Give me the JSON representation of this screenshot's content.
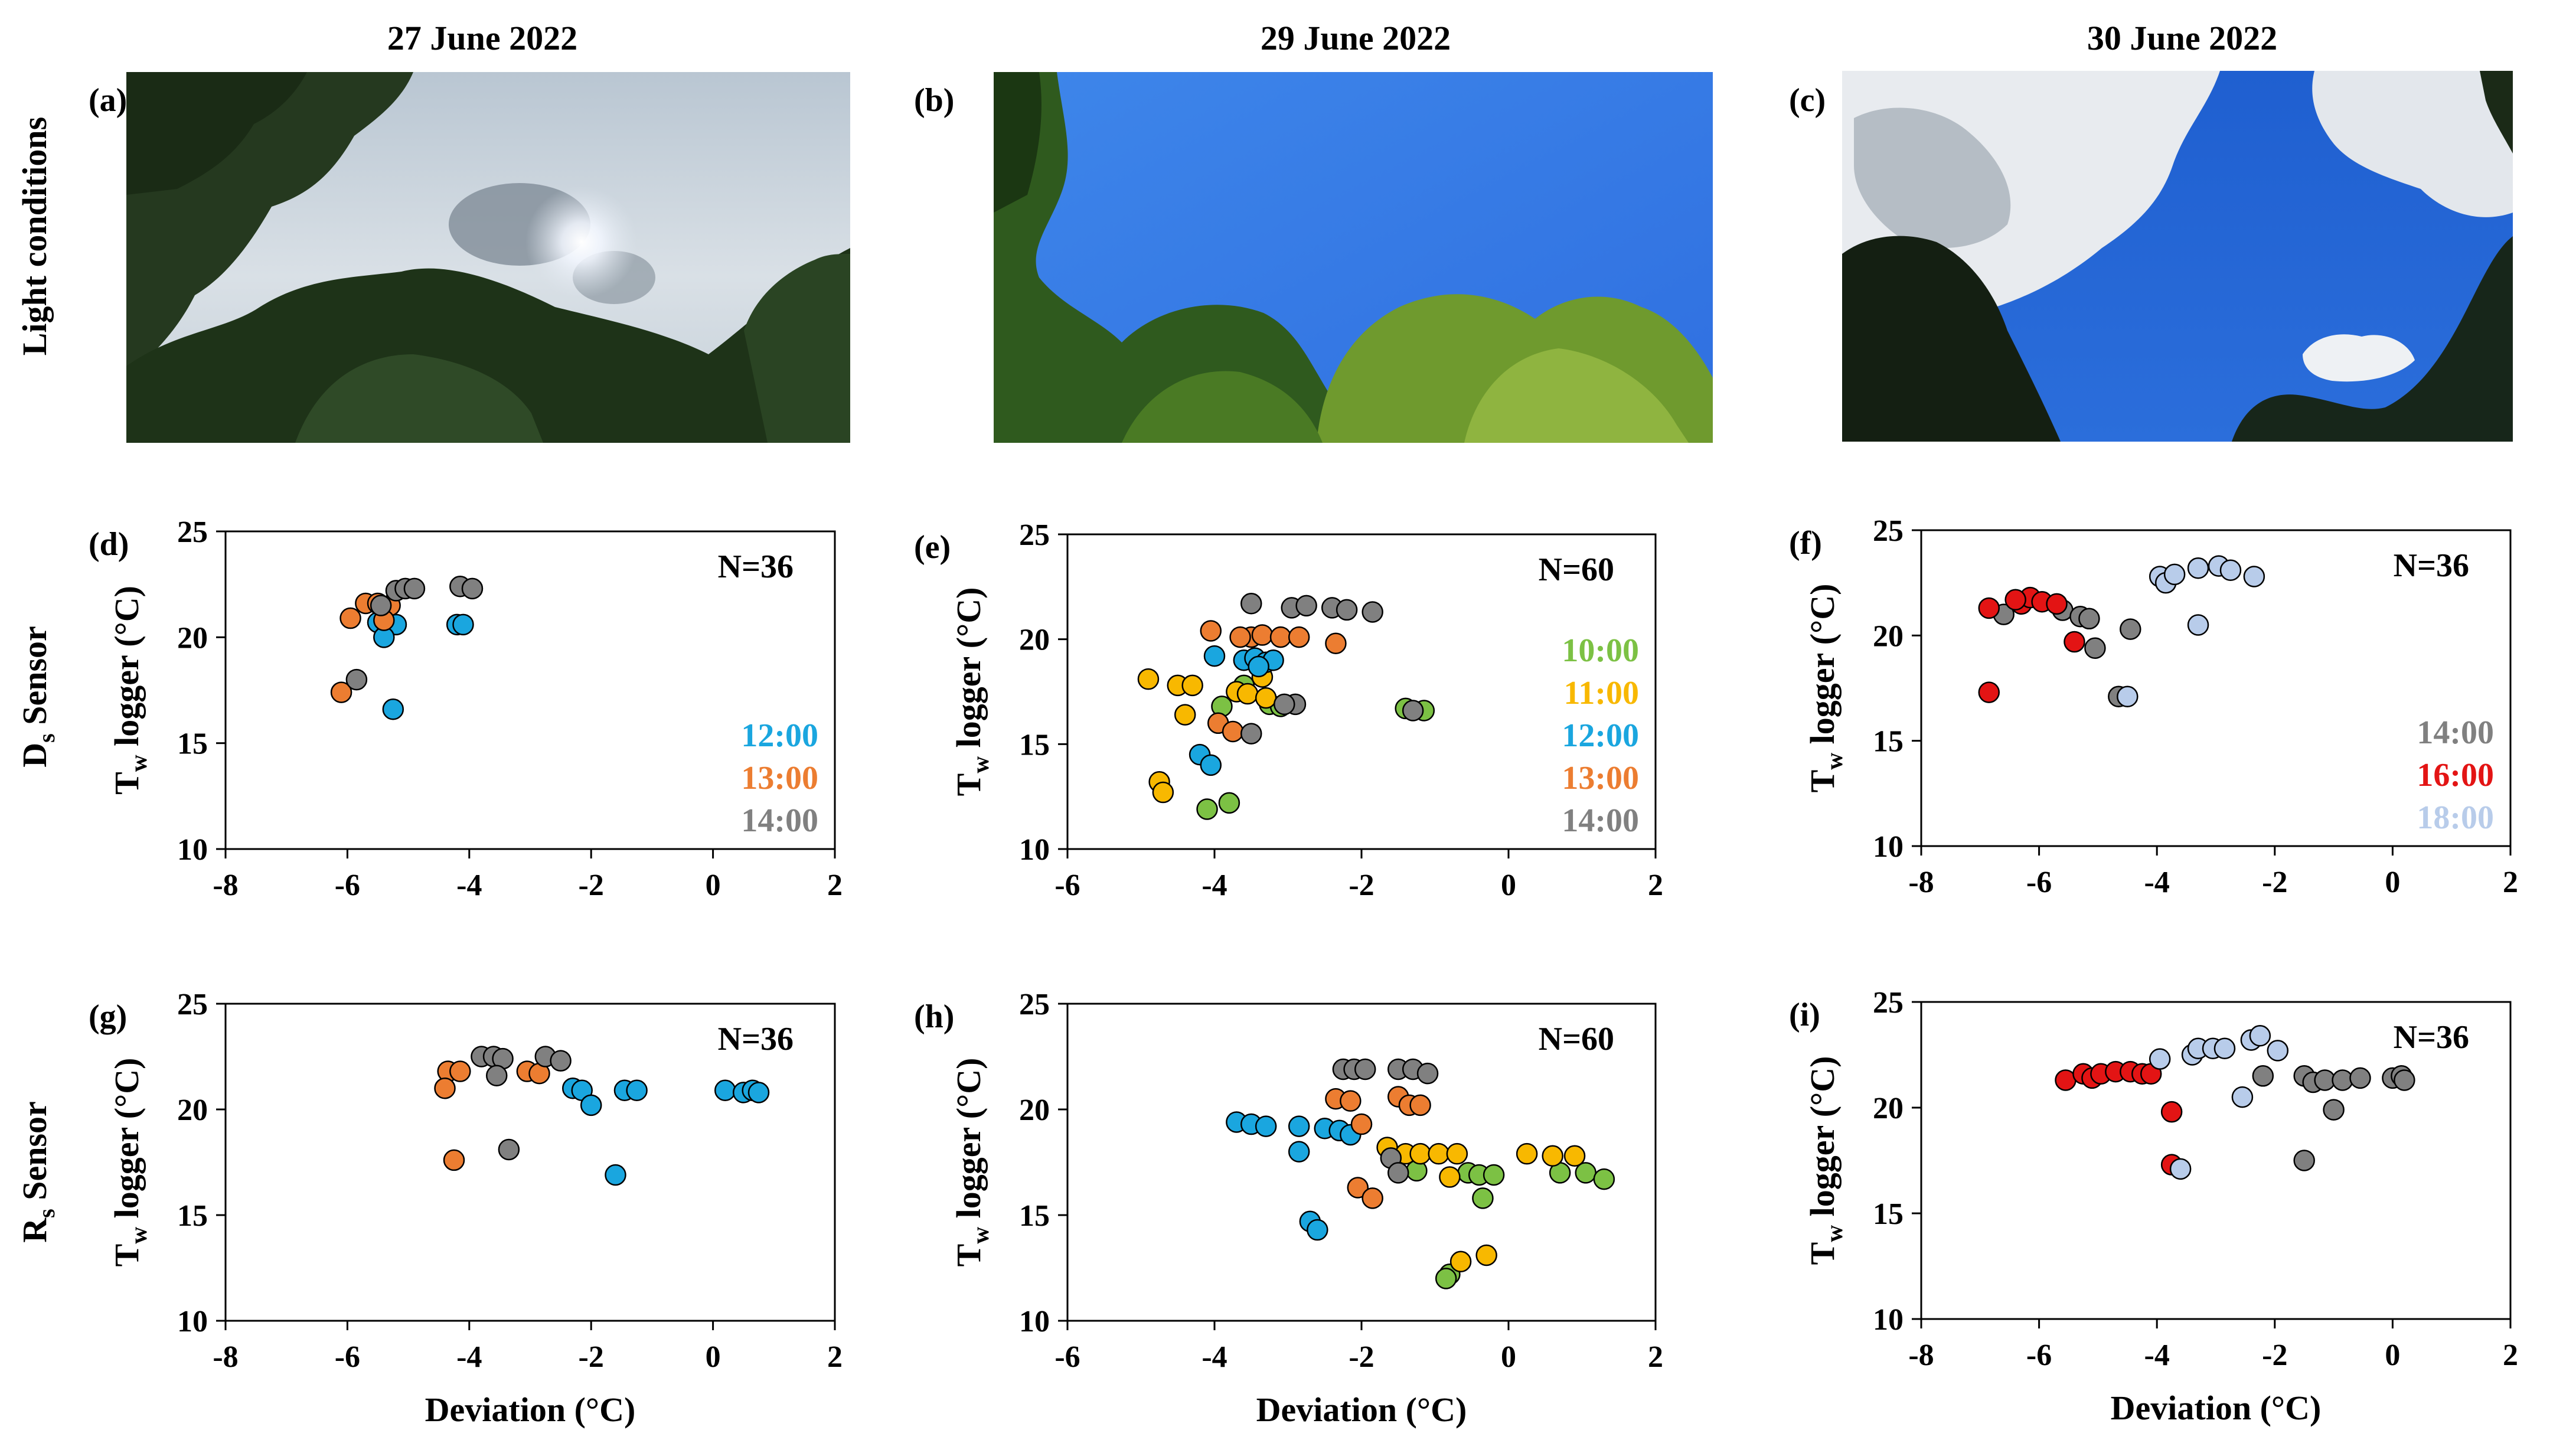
{
  "columns": [
    {
      "date": "27 June 2022"
    },
    {
      "date": "29 June 2022"
    },
    {
      "date": "30 June 2022"
    }
  ],
  "row_labels": {
    "light": "Light conditions",
    "ds": {
      "main": "D",
      "sub": "s",
      "tail": " Sensor"
    },
    "rs": {
      "main": "R",
      "sub": "s",
      "tail": " Sensor"
    }
  },
  "ylabel": {
    "main": "T",
    "sub": "w",
    "tail": " logger (°C)"
  },
  "xlabel": "Deviation (°C)",
  "photos": [
    {
      "label": "(a)",
      "sky": "overcast"
    },
    {
      "label": "(b)",
      "sky": "clear"
    },
    {
      "label": "(c)",
      "sky": "cumulus"
    }
  ],
  "colors": {
    "10:00": "#7CC144",
    "11:00": "#F8B800",
    "12:00": "#1AA6DF",
    "13:00": "#EC7D31",
    "14:00": "#808080",
    "16:00": "#E31414",
    "18:00": "#B8CCEA"
  },
  "chart_data": [
    {
      "type": "scatter",
      "label": "(d)",
      "annotation": "N=36",
      "xlim": [
        -8,
        2
      ],
      "ylim": [
        10,
        25
      ],
      "xticks": [
        -8,
        -6,
        -4,
        -2,
        0,
        2
      ],
      "yticks": [
        10,
        15,
        20,
        25
      ],
      "legend": [
        "12:00",
        "13:00",
        "14:00"
      ],
      "series": [
        {
          "name": "12:00",
          "points": [
            [
              -5.5,
              20.7
            ],
            [
              -5.35,
              20.6
            ],
            [
              -5.2,
              20.6
            ],
            [
              -5.4,
              20.0
            ],
            [
              -5.25,
              16.6
            ],
            [
              -4.2,
              20.6
            ],
            [
              -4.1,
              20.6
            ]
          ]
        },
        {
          "name": "13:00",
          "points": [
            [
              -6.1,
              17.4
            ],
            [
              -5.95,
              20.9
            ],
            [
              -5.7,
              21.6
            ],
            [
              -5.5,
              21.6
            ],
            [
              -5.3,
              21.5
            ],
            [
              -5.4,
              20.8
            ]
          ]
        },
        {
          "name": "14:00",
          "points": [
            [
              -5.85,
              18.0
            ],
            [
              -5.2,
              22.2
            ],
            [
              -5.05,
              22.3
            ],
            [
              -4.9,
              22.3
            ],
            [
              -4.15,
              22.4
            ],
            [
              -3.95,
              22.3
            ],
            [
              -5.45,
              21.5
            ]
          ]
        }
      ]
    },
    {
      "type": "scatter",
      "label": "(e)",
      "annotation": "N=60",
      "xlim": [
        -6,
        2
      ],
      "ylim": [
        10,
        25
      ],
      "xticks": [
        -6,
        -4,
        -2,
        0,
        2
      ],
      "yticks": [
        10,
        15,
        20,
        25
      ],
      "legend": [
        "10:00",
        "11:00",
        "12:00",
        "13:00",
        "14:00"
      ],
      "series": [
        {
          "name": "10:00",
          "points": [
            [
              -4.1,
              11.9
            ],
            [
              -3.8,
              12.2
            ],
            [
              -3.9,
              16.8
            ],
            [
              -3.6,
              17.8
            ],
            [
              -3.25,
              16.9
            ],
            [
              -3.1,
              16.8
            ],
            [
              -1.4,
              16.7
            ],
            [
              -1.15,
              16.6
            ]
          ]
        },
        {
          "name": "11:00",
          "points": [
            [
              -4.9,
              18.1
            ],
            [
              -4.75,
              13.2
            ],
            [
              -4.7,
              12.7
            ],
            [
              -4.5,
              17.8
            ],
            [
              -4.3,
              17.8
            ],
            [
              -4.4,
              16.4
            ],
            [
              -3.7,
              17.5
            ],
            [
              -3.55,
              17.4
            ],
            [
              -3.3,
              17.2
            ],
            [
              -3.35,
              18.2
            ]
          ]
        },
        {
          "name": "12:00",
          "points": [
            [
              -4.2,
              14.5
            ],
            [
              -4.05,
              14.0
            ],
            [
              -4.0,
              19.2
            ],
            [
              -3.6,
              19.0
            ],
            [
              -3.45,
              19.1
            ],
            [
              -3.3,
              18.9
            ],
            [
              -3.2,
              19.0
            ],
            [
              -3.4,
              18.7
            ]
          ]
        },
        {
          "name": "13:00",
          "points": [
            [
              -4.05,
              20.4
            ],
            [
              -3.95,
              16.0
            ],
            [
              -3.75,
              15.6
            ],
            [
              -3.5,
              20.1
            ],
            [
              -3.35,
              20.2
            ],
            [
              -3.1,
              20.1
            ],
            [
              -2.85,
              20.1
            ],
            [
              -2.35,
              19.8
            ],
            [
              -3.65,
              20.1
            ]
          ]
        },
        {
          "name": "14:00",
          "points": [
            [
              -3.5,
              21.7
            ],
            [
              -3.5,
              15.5
            ],
            [
              -2.95,
              21.5
            ],
            [
              -2.75,
              21.6
            ],
            [
              -2.4,
              21.5
            ],
            [
              -2.2,
              21.4
            ],
            [
              -1.85,
              21.3
            ],
            [
              -2.9,
              16.9
            ],
            [
              -3.05,
              16.9
            ],
            [
              -1.3,
              16.6
            ]
          ]
        }
      ]
    },
    {
      "type": "scatter",
      "label": "(f)",
      "annotation": "N=36",
      "xlim": [
        -8,
        2
      ],
      "ylim": [
        10,
        25
      ],
      "xticks": [
        -8,
        -6,
        -4,
        -2,
        0,
        2
      ],
      "yticks": [
        10,
        15,
        20,
        25
      ],
      "legend": [
        "14:00",
        "16:00",
        "18:00"
      ],
      "series": [
        {
          "name": "14:00",
          "points": [
            [
              -6.6,
              21.0
            ],
            [
              -5.6,
              21.2
            ],
            [
              -5.3,
              20.9
            ],
            [
              -5.15,
              20.8
            ],
            [
              -5.05,
              19.4
            ],
            [
              -4.45,
              20.3
            ],
            [
              -4.65,
              17.1
            ]
          ]
        },
        {
          "name": "16:00",
          "points": [
            [
              -6.85,
              21.3
            ],
            [
              -6.85,
              17.3
            ],
            [
              -6.3,
              21.5
            ],
            [
              -6.15,
              21.8
            ],
            [
              -5.95,
              21.6
            ],
            [
              -5.7,
              21.5
            ],
            [
              -5.4,
              19.7
            ],
            [
              -6.4,
              21.7
            ]
          ]
        },
        {
          "name": "18:00",
          "points": [
            [
              -4.5,
              17.1
            ],
            [
              -3.95,
              22.8
            ],
            [
              -3.85,
              22.5
            ],
            [
              -3.7,
              22.9
            ],
            [
              -3.3,
              23.2
            ],
            [
              -2.95,
              23.3
            ],
            [
              -2.75,
              23.1
            ],
            [
              -2.35,
              22.8
            ],
            [
              -3.3,
              20.5
            ]
          ]
        }
      ]
    },
    {
      "type": "scatter",
      "label": "(g)",
      "annotation": "N=36",
      "xlim": [
        -8,
        2
      ],
      "ylim": [
        10,
        25
      ],
      "xticks": [
        -8,
        -6,
        -4,
        -2,
        0,
        2
      ],
      "yticks": [
        10,
        15,
        20,
        25
      ],
      "series": [
        {
          "name": "12:00",
          "points": [
            [
              -2.3,
              21.0
            ],
            [
              -2.15,
              20.9
            ],
            [
              -2.0,
              20.2
            ],
            [
              -1.6,
              16.9
            ],
            [
              -1.45,
              20.9
            ],
            [
              -1.25,
              20.9
            ],
            [
              0.2,
              20.9
            ],
            [
              0.5,
              20.8
            ],
            [
              0.65,
              20.9
            ],
            [
              0.75,
              20.8
            ]
          ]
        },
        {
          "name": "13:00",
          "points": [
            [
              -4.35,
              21.8
            ],
            [
              -4.15,
              21.8
            ],
            [
              -4.4,
              21.0
            ],
            [
              -4.25,
              17.6
            ],
            [
              -3.05,
              21.8
            ],
            [
              -2.85,
              21.7
            ]
          ]
        },
        {
          "name": "14:00",
          "points": [
            [
              -3.8,
              22.5
            ],
            [
              -3.6,
              22.5
            ],
            [
              -3.45,
              22.4
            ],
            [
              -3.55,
              21.6
            ],
            [
              -3.35,
              18.1
            ],
            [
              -2.75,
              22.5
            ],
            [
              -2.5,
              22.3
            ]
          ]
        }
      ]
    },
    {
      "type": "scatter",
      "label": "(h)",
      "annotation": "N=60",
      "xlim": [
        -6,
        2
      ],
      "ylim": [
        10,
        25
      ],
      "xticks": [
        -6,
        -4,
        -2,
        0,
        2
      ],
      "yticks": [
        10,
        15,
        20,
        25
      ],
      "series": [
        {
          "name": "10:00",
          "points": [
            [
              -1.25,
              17.1
            ],
            [
              -0.55,
              17.0
            ],
            [
              -0.4,
              16.9
            ],
            [
              -0.2,
              16.9
            ],
            [
              -0.35,
              15.8
            ],
            [
              -0.8,
              12.2
            ],
            [
              -0.85,
              12.0
            ],
            [
              0.7,
              17.0
            ],
            [
              1.05,
              17.0
            ],
            [
              1.3,
              16.7
            ]
          ]
        },
        {
          "name": "11:00",
          "points": [
            [
              -1.65,
              18.2
            ],
            [
              -1.4,
              17.9
            ],
            [
              -1.2,
              17.9
            ],
            [
              -0.95,
              17.9
            ],
            [
              -0.7,
              17.9
            ],
            [
              -0.8,
              16.8
            ],
            [
              -0.65,
              12.8
            ],
            [
              -0.3,
              13.1
            ],
            [
              0.25,
              17.9
            ],
            [
              0.6,
              17.8
            ],
            [
              0.9,
              17.8
            ]
          ]
        },
        {
          "name": "12:00",
          "points": [
            [
              -3.7,
              19.4
            ],
            [
              -3.5,
              19.3
            ],
            [
              -3.3,
              19.2
            ],
            [
              -2.85,
              19.2
            ],
            [
              -2.85,
              18.0
            ],
            [
              -2.5,
              19.1
            ],
            [
              -2.3,
              19.0
            ],
            [
              -2.15,
              18.8
            ],
            [
              -2.7,
              14.7
            ],
            [
              -2.6,
              14.3
            ]
          ]
        },
        {
          "name": "13:00",
          "points": [
            [
              -2.35,
              20.5
            ],
            [
              -2.15,
              20.4
            ],
            [
              -2.0,
              19.3
            ],
            [
              -2.05,
              16.3
            ],
            [
              -1.85,
              15.8
            ],
            [
              -1.5,
              20.6
            ],
            [
              -1.35,
              20.2
            ],
            [
              -1.2,
              20.2
            ]
          ]
        },
        {
          "name": "14:00",
          "points": [
            [
              -2.25,
              21.9
            ],
            [
              -2.1,
              21.9
            ],
            [
              -1.95,
              21.9
            ],
            [
              -1.5,
              21.9
            ],
            [
              -1.3,
              21.9
            ],
            [
              -1.1,
              21.7
            ],
            [
              -1.6,
              17.7
            ],
            [
              -1.5,
              17.0
            ]
          ]
        }
      ]
    },
    {
      "type": "scatter",
      "label": "(i)",
      "annotation": "N=36",
      "xlim": [
        -8,
        2
      ],
      "ylim": [
        10,
        25
      ],
      "xticks": [
        -8,
        -6,
        -4,
        -2,
        0,
        2
      ],
      "yticks": [
        10,
        15,
        20,
        25
      ],
      "series": [
        {
          "name": "14:00",
          "points": [
            [
              -2.2,
              21.5
            ],
            [
              -1.5,
              21.5
            ],
            [
              -1.35,
              21.2
            ],
            [
              -1.15,
              21.3
            ],
            [
              -0.85,
              21.3
            ],
            [
              -0.55,
              21.4
            ],
            [
              0.0,
              21.4
            ],
            [
              0.15,
              21.5
            ],
            [
              0.2,
              21.3
            ],
            [
              -1.0,
              19.9
            ],
            [
              -1.5,
              17.5
            ]
          ]
        },
        {
          "name": "16:00",
          "points": [
            [
              -5.55,
              21.3
            ],
            [
              -5.25,
              21.6
            ],
            [
              -5.1,
              21.4
            ],
            [
              -4.95,
              21.6
            ],
            [
              -4.7,
              21.7
            ],
            [
              -4.45,
              21.7
            ],
            [
              -4.25,
              21.6
            ],
            [
              -4.1,
              21.6
            ],
            [
              -3.75,
              19.8
            ],
            [
              -3.75,
              17.3
            ]
          ]
        },
        {
          "name": "18:00",
          "points": [
            [
              -3.95,
              22.3
            ],
            [
              -3.4,
              22.5
            ],
            [
              -3.3,
              22.8
            ],
            [
              -3.05,
              22.8
            ],
            [
              -2.85,
              22.8
            ],
            [
              -2.55,
              20.5
            ],
            [
              -2.4,
              23.2
            ],
            [
              -2.25,
              23.4
            ],
            [
              -1.95,
              22.7
            ],
            [
              -3.6,
              17.1
            ]
          ]
        }
      ]
    }
  ]
}
